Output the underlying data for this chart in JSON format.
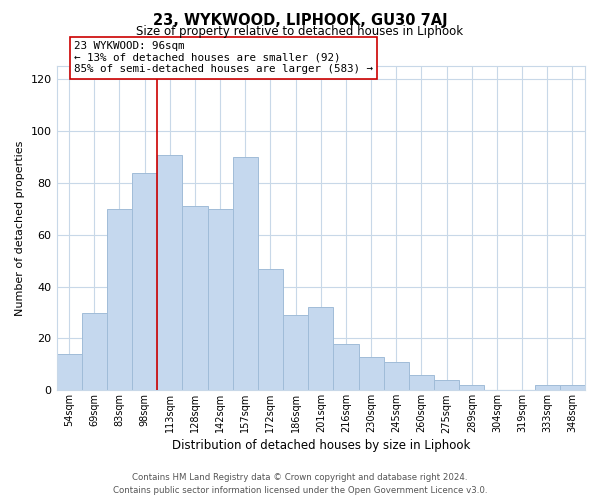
{
  "title": "23, WYKWOOD, LIPHOOK, GU30 7AJ",
  "subtitle": "Size of property relative to detached houses in Liphook",
  "xlabel": "Distribution of detached houses by size in Liphook",
  "ylabel": "Number of detached properties",
  "bar_labels": [
    "54sqm",
    "69sqm",
    "83sqm",
    "98sqm",
    "113sqm",
    "128sqm",
    "142sqm",
    "157sqm",
    "172sqm",
    "186sqm",
    "201sqm",
    "216sqm",
    "230sqm",
    "245sqm",
    "260sqm",
    "275sqm",
    "289sqm",
    "304sqm",
    "319sqm",
    "333sqm",
    "348sqm"
  ],
  "bar_values": [
    14,
    30,
    70,
    84,
    91,
    71,
    70,
    90,
    47,
    29,
    32,
    18,
    13,
    11,
    6,
    4,
    2,
    0,
    0,
    2,
    2
  ],
  "bar_color": "#c5d8ee",
  "bar_edge_color": "#a0bcd8",
  "vline_x": 3.5,
  "vline_color": "#cc0000",
  "annotation_text": "23 WYKWOOD: 96sqm\n← 13% of detached houses are smaller (92)\n85% of semi-detached houses are larger (583) →",
  "annotation_box_color": "#ffffff",
  "annotation_box_edge": "#cc0000",
  "ylim": [
    0,
    125
  ],
  "yticks": [
    0,
    20,
    40,
    60,
    80,
    100,
    120
  ],
  "background_color": "#ffffff",
  "grid_color": "#c8d8e8",
  "footer_line1": "Contains HM Land Registry data © Crown copyright and database right 2024.",
  "footer_line2": "Contains public sector information licensed under the Open Government Licence v3.0."
}
